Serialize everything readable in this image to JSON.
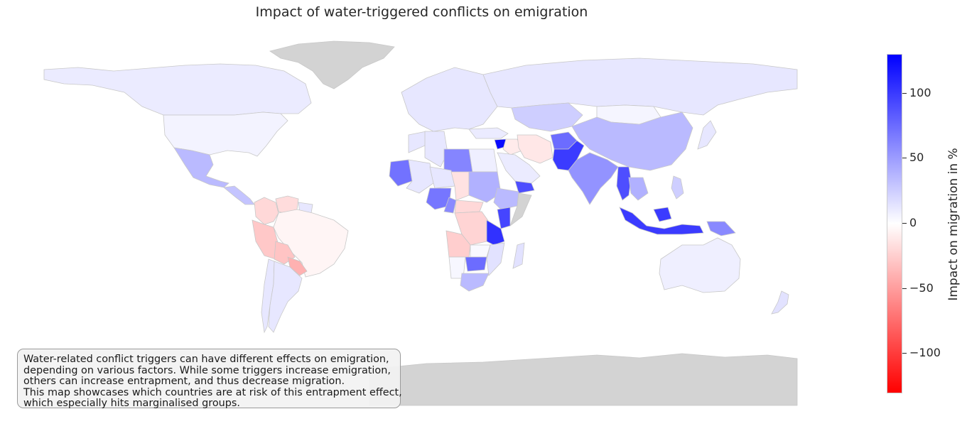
{
  "chart_data": {
    "type": "choropleth",
    "title": "Impact of water-triggered conflicts on emigration",
    "colorbar": {
      "label": "Impact on migration in %",
      "range": [
        -130,
        130
      ],
      "ticks": [
        100,
        50,
        0,
        -50,
        -100
      ],
      "tick_labels": [
        "100",
        "50",
        "0",
        "−50",
        "−100"
      ],
      "colormap": [
        "#ff0000",
        "#ffffff",
        "#0000ff"
      ]
    },
    "no_data_color": "#d3d3d3",
    "regions": [
      {
        "name": "Canada",
        "value": 10
      },
      {
        "name": "United States",
        "value": 6
      },
      {
        "name": "Greenland",
        "value": null
      },
      {
        "name": "Mexico",
        "value": 35
      },
      {
        "name": "Central America",
        "value": 30
      },
      {
        "name": "Colombia",
        "value": -20
      },
      {
        "name": "Venezuela",
        "value": -18
      },
      {
        "name": "Guyana",
        "value": 12
      },
      {
        "name": "Peru",
        "value": -28
      },
      {
        "name": "Bolivia",
        "value": -30
      },
      {
        "name": "Paraguay",
        "value": -40
      },
      {
        "name": "Brazil",
        "value": -5
      },
      {
        "name": "Chile",
        "value": 12
      },
      {
        "name": "Argentina",
        "value": 12
      },
      {
        "name": "Europe",
        "value": 12
      },
      {
        "name": "Russia",
        "value": 12
      },
      {
        "name": "Kazakhstan",
        "value": 25
      },
      {
        "name": "China",
        "value": 35
      },
      {
        "name": "Mongolia",
        "value": 5
      },
      {
        "name": "Afghanistan",
        "value": 75
      },
      {
        "name": "Pakistan",
        "value": 100
      },
      {
        "name": "India",
        "value": 55
      },
      {
        "name": "Iran",
        "value": -12
      },
      {
        "name": "Iraq",
        "value": -10
      },
      {
        "name": "Syria",
        "value": 125
      },
      {
        "name": "Turkey",
        "value": 10
      },
      {
        "name": "Saudi Arabia",
        "value": 10
      },
      {
        "name": "Yemen",
        "value": 90
      },
      {
        "name": "Myanmar",
        "value": 90
      },
      {
        "name": "Thailand",
        "value": 40
      },
      {
        "name": "Indonesia",
        "value": 100
      },
      {
        "name": "Papua New Guinea",
        "value": 60
      },
      {
        "name": "Philippines",
        "value": 25
      },
      {
        "name": "Japan",
        "value": 12
      },
      {
        "name": "Australia",
        "value": 8
      },
      {
        "name": "New Zealand",
        "value": 15
      },
      {
        "name": "Morocco",
        "value": 12
      },
      {
        "name": "Algeria",
        "value": 12
      },
      {
        "name": "Libya",
        "value": 62
      },
      {
        "name": "Egypt",
        "value": 8
      },
      {
        "name": "Mauritania",
        "value": 72
      },
      {
        "name": "Mali",
        "value": 12
      },
      {
        "name": "Niger",
        "value": 12
      },
      {
        "name": "Chad",
        "value": -15
      },
      {
        "name": "Sudan",
        "value": 40
      },
      {
        "name": "Ethiopia",
        "value": 35
      },
      {
        "name": "Somalia",
        "value": null
      },
      {
        "name": "Nigeria",
        "value": 70
      },
      {
        "name": "Cameroon",
        "value": 60
      },
      {
        "name": "Central African Republic",
        "value": -20
      },
      {
        "name": "DR Congo",
        "value": -22
      },
      {
        "name": "Angola",
        "value": -25
      },
      {
        "name": "Tanzania",
        "value": 105
      },
      {
        "name": "Kenya",
        "value": 95
      },
      {
        "name": "Zambia",
        "value": 3
      },
      {
        "name": "Mozambique",
        "value": 15
      },
      {
        "name": "Namibia",
        "value": 4
      },
      {
        "name": "Zimbabwe",
        "value": 75
      },
      {
        "name": "South Africa",
        "value": 35
      },
      {
        "name": "Madagascar",
        "value": 15
      },
      {
        "name": "Antarctica",
        "value": null
      }
    ]
  },
  "note": {
    "lines": [
      "Water-related conflict triggers can have different effects on emigration,",
      "depending on various factors. While some triggers increase emigration,",
      "others can increase entrapment, and thus decrease migration.",
      "This map showcases which countries are at risk of this entrapment effect,",
      "which especially hits marginalised groups."
    ]
  }
}
